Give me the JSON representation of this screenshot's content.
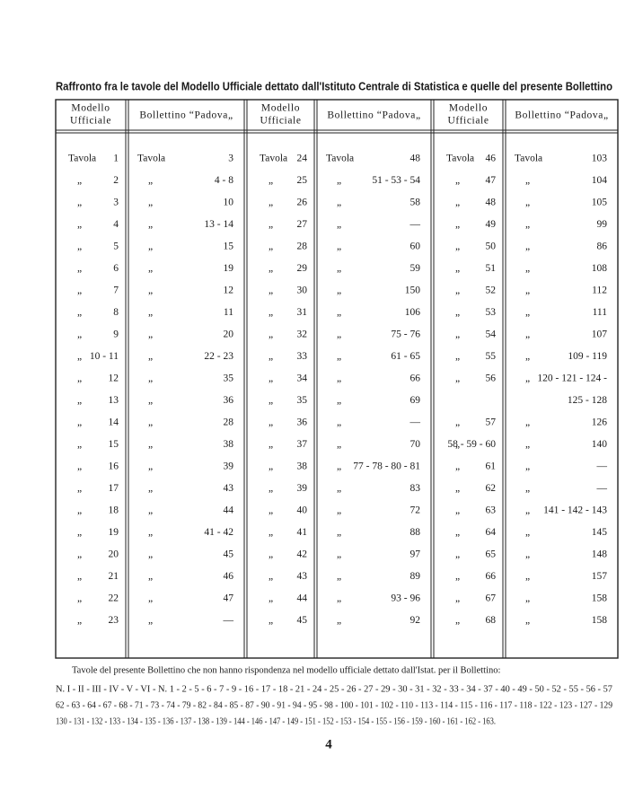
{
  "title": "Raffronto fra le tavole del Modello Ufficiale dettato dall'Istituto Centrale di Statistica e quelle del presente Bollettino",
  "table": {
    "headers": [
      [
        "Modello",
        "Ufficiale"
      ],
      [
        "Bollettino “Padova„"
      ],
      [
        "Modello",
        "Ufficiale"
      ],
      [
        "Bollettino “Padova„"
      ],
      [
        "Modello",
        "Ufficiale"
      ],
      [
        "Bollettino “Padova„"
      ]
    ],
    "rows": [
      [
        {
          "mark": "Tavola",
          "value": "1"
        },
        {
          "mark": "Tavola",
          "value": "3"
        },
        {
          "mark": "Tavola",
          "value": "24"
        },
        {
          "mark": "Tavola",
          "value": "48"
        },
        {
          "mark": "Tavola",
          "value": "46"
        },
        {
          "mark": "Tavola",
          "value": "103"
        }
      ],
      [
        {
          "mark": "„",
          "value": "2"
        },
        {
          "mark": "„",
          "value": "4 - 8"
        },
        {
          "mark": "„",
          "value": "25"
        },
        {
          "mark": "„",
          "value": "51 - 53 - 54"
        },
        {
          "mark": "„",
          "value": "47"
        },
        {
          "mark": "„",
          "value": "104"
        }
      ],
      [
        {
          "mark": "„",
          "value": "3"
        },
        {
          "mark": "„",
          "value": "10"
        },
        {
          "mark": "„",
          "value": "26"
        },
        {
          "mark": "„",
          "value": "58"
        },
        {
          "mark": "„",
          "value": "48"
        },
        {
          "mark": "„",
          "value": "105"
        }
      ],
      [
        {
          "mark": "„",
          "value": "4"
        },
        {
          "mark": "„",
          "value": "13 - 14"
        },
        {
          "mark": "„",
          "value": "27"
        },
        {
          "mark": "„",
          "value": "—"
        },
        {
          "mark": "„",
          "value": "49"
        },
        {
          "mark": "„",
          "value": "99"
        }
      ],
      [
        {
          "mark": "„",
          "value": "5"
        },
        {
          "mark": "„",
          "value": "15"
        },
        {
          "mark": "„",
          "value": "28"
        },
        {
          "mark": "„",
          "value": "60"
        },
        {
          "mark": "„",
          "value": "50"
        },
        {
          "mark": "„",
          "value": "86"
        }
      ],
      [
        {
          "mark": "„",
          "value": "6"
        },
        {
          "mark": "„",
          "value": "19"
        },
        {
          "mark": "„",
          "value": "29"
        },
        {
          "mark": "„",
          "value": "59"
        },
        {
          "mark": "„",
          "value": "51"
        },
        {
          "mark": "„",
          "value": "108"
        }
      ],
      [
        {
          "mark": "„",
          "value": "7"
        },
        {
          "mark": "„",
          "value": "12"
        },
        {
          "mark": "„",
          "value": "30"
        },
        {
          "mark": "„",
          "value": "150"
        },
        {
          "mark": "„",
          "value": "52"
        },
        {
          "mark": "„",
          "value": "112"
        }
      ],
      [
        {
          "mark": "„",
          "value": "8"
        },
        {
          "mark": "„",
          "value": "11"
        },
        {
          "mark": "„",
          "value": "31"
        },
        {
          "mark": "„",
          "value": "106"
        },
        {
          "mark": "„",
          "value": "53"
        },
        {
          "mark": "„",
          "value": "111"
        }
      ],
      [
        {
          "mark": "„",
          "value": "9"
        },
        {
          "mark": "„",
          "value": "20"
        },
        {
          "mark": "„",
          "value": "32"
        },
        {
          "mark": "„",
          "value": "75 - 76"
        },
        {
          "mark": "„",
          "value": "54"
        },
        {
          "mark": "„",
          "value": "107"
        }
      ],
      [
        {
          "mark": "„",
          "value": "10 - 11"
        },
        {
          "mark": "„",
          "value": "22 - 23"
        },
        {
          "mark": "„",
          "value": "33"
        },
        {
          "mark": "„",
          "value": "61 - 65"
        },
        {
          "mark": "„",
          "value": "55"
        },
        {
          "mark": "„",
          "value": "109 - 119"
        }
      ],
      [
        {
          "mark": "„",
          "value": "12"
        },
        {
          "mark": "„",
          "value": "35"
        },
        {
          "mark": "„",
          "value": "34"
        },
        {
          "mark": "„",
          "value": "66"
        },
        {
          "mark": "„",
          "value": "56"
        },
        {
          "mark": "„",
          "value": "120 - 121 - 124 -"
        }
      ],
      [
        {
          "mark": "„",
          "value": "13"
        },
        {
          "mark": "„",
          "value": "36"
        },
        {
          "mark": "„",
          "value": "35"
        },
        {
          "mark": "„",
          "value": "69"
        },
        null,
        {
          "value": "125 - 128"
        }
      ],
      [
        {
          "mark": "„",
          "value": "14"
        },
        {
          "mark": "„",
          "value": "28"
        },
        {
          "mark": "„",
          "value": "36"
        },
        {
          "mark": "„",
          "value": "—"
        },
        {
          "mark": "„",
          "value": "57"
        },
        {
          "mark": "„",
          "value": "126"
        }
      ],
      [
        {
          "mark": "„",
          "value": "15"
        },
        {
          "mark": "„",
          "value": "38"
        },
        {
          "mark": "„",
          "value": "37"
        },
        {
          "mark": "„",
          "value": "70"
        },
        {
          "mark": "„",
          "value": "58 - 59 - 60"
        },
        {
          "mark": "„",
          "value": "140"
        }
      ],
      [
        {
          "mark": "„",
          "value": "16"
        },
        {
          "mark": "„",
          "value": "39"
        },
        {
          "mark": "„",
          "value": "38"
        },
        {
          "mark": "„",
          "value": "77 - 78 - 80 - 81"
        },
        {
          "mark": "„",
          "value": "61"
        },
        {
          "mark": "„",
          "value": "—"
        }
      ],
      [
        {
          "mark": "„",
          "value": "17"
        },
        {
          "mark": "„",
          "value": "43"
        },
        {
          "mark": "„",
          "value": "39"
        },
        {
          "mark": "„",
          "value": "83"
        },
        {
          "mark": "„",
          "value": "62"
        },
        {
          "mark": "„",
          "value": "—"
        }
      ],
      [
        {
          "mark": "„",
          "value": "18"
        },
        {
          "mark": "„",
          "value": "44"
        },
        {
          "mark": "„",
          "value": "40"
        },
        {
          "mark": "„",
          "value": "72"
        },
        {
          "mark": "„",
          "value": "63"
        },
        {
          "mark": "„",
          "value": "141 - 142 - 143"
        }
      ],
      [
        {
          "mark": "„",
          "value": "19"
        },
        {
          "mark": "„",
          "value": "41 - 42"
        },
        {
          "mark": "„",
          "value": "41"
        },
        {
          "mark": "„",
          "value": "88"
        },
        {
          "mark": "„",
          "value": "64"
        },
        {
          "mark": "„",
          "value": "145"
        }
      ],
      [
        {
          "mark": "„",
          "value": "20"
        },
        {
          "mark": "„",
          "value": "45"
        },
        {
          "mark": "„",
          "value": "42"
        },
        {
          "mark": "„",
          "value": "97"
        },
        {
          "mark": "„",
          "value": "65"
        },
        {
          "mark": "„",
          "value": "148"
        }
      ],
      [
        {
          "mark": "„",
          "value": "21"
        },
        {
          "mark": "„",
          "value": "46"
        },
        {
          "mark": "„",
          "value": "43"
        },
        {
          "mark": "„",
          "value": "89"
        },
        {
          "mark": "„",
          "value": "66"
        },
        {
          "mark": "„",
          "value": "157"
        }
      ],
      [
        {
          "mark": "„",
          "value": "22"
        },
        {
          "mark": "„",
          "value": "47"
        },
        {
          "mark": "„",
          "value": "44"
        },
        {
          "mark": "„",
          "value": "93 - 96"
        },
        {
          "mark": "„",
          "value": "67"
        },
        {
          "mark": "„",
          "value": "158"
        }
      ],
      [
        {
          "mark": "„",
          "value": "23"
        },
        {
          "mark": "„",
          "value": "—"
        },
        {
          "mark": "„",
          "value": "45"
        },
        {
          "mark": "„",
          "value": "92"
        },
        {
          "mark": "„",
          "value": "68"
        },
        {
          "mark": "„",
          "value": "158"
        }
      ]
    ]
  },
  "note": "Tavole del presente Bollettino che non hanno rispondenza nel modello ufficiale dettato dall'Istat. per il Bollettino:",
  "list": [
    "N. I - II - III - IV - V - VI - N. 1 - 2 - 5 - 6 - 7 - 9 - 16 - 17 - 18 - 21 - 24 - 25 - 26 - 27 - 29 - 30 - 31 - 32 - 33 - 34 - 37 - 40 - 49 - 50 - 52 - 55 - 56 - 57",
    "62 - 63 - 64 - 67 - 68 - 71 - 73 - 74 - 79 - 82 - 84 - 85 - 87 - 90 - 91 - 94 - 95 - 98 - 100 - 101 - 102 - 110 - 113 - 114 - 115 - 116 - 117 - 118 - 122 - 123 - 127 - 129",
    "130 - 131 - 132 - 133 - 134 - 135 - 136 - 137 - 138 - 139 - 144 - 146 - 147 - 149 - 151 - 152 - 153 - 154 - 155 - 156 - 159 - 160 - 161 - 162 - 163."
  ],
  "page_number": "4"
}
